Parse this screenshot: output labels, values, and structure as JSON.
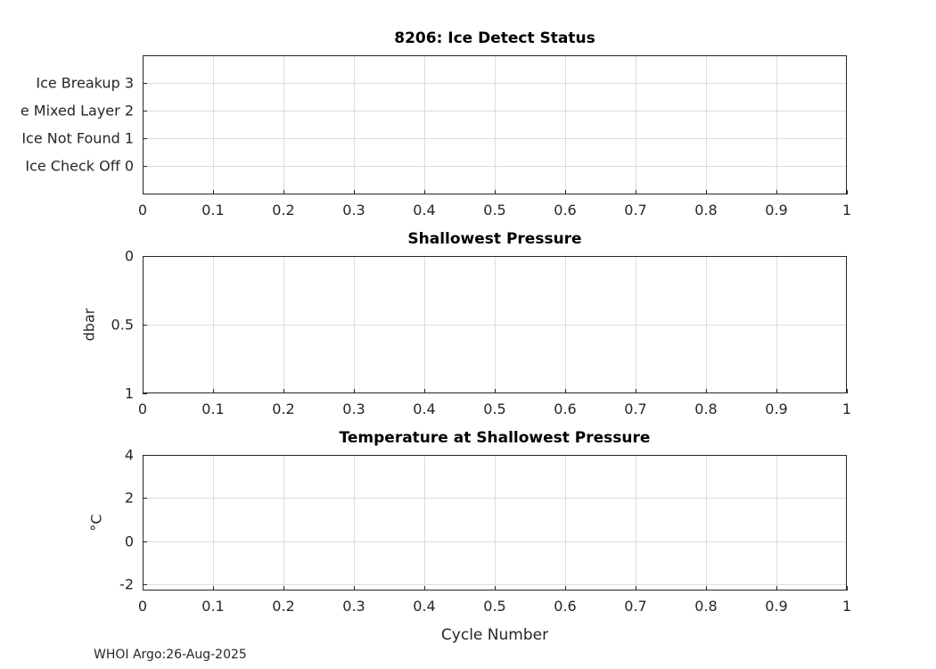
{
  "figure": {
    "footer_text": "WHOI Argo:26-Aug-2025"
  },
  "colors": {
    "axis": "#262626",
    "grid": "#dcdcdc",
    "background": "#ffffff",
    "text": "#262626"
  },
  "chart_data": [
    {
      "type": "line",
      "title": "8206: Ice Detect Status",
      "xlabel": "",
      "ylabel": "",
      "xlim": [
        0,
        1
      ],
      "ylim": [
        -1.05,
        4
      ],
      "y_reversed": false,
      "grid": true,
      "xticks": [
        0,
        0.1,
        0.2,
        0.3,
        0.4,
        0.5,
        0.6,
        0.7,
        0.8,
        0.9,
        1
      ],
      "xtick_labels": [
        "0",
        "0.1",
        "0.2",
        "0.3",
        "0.4",
        "0.5",
        "0.6",
        "0.7",
        "0.8",
        "0.9",
        "1"
      ],
      "yticks": [
        0,
        1,
        2,
        3
      ],
      "ytick_labels": [
        "Ice Check Off 0",
        "Ice Not Found 1",
        "e Mixed Layer 2",
        "Ice Breakup 3"
      ],
      "series": []
    },
    {
      "type": "line",
      "title": "Shallowest Pressure",
      "xlabel": "",
      "ylabel": "dbar",
      "xlim": [
        0,
        1
      ],
      "ylim": [
        0,
        1
      ],
      "y_reversed": true,
      "grid": true,
      "xticks": [
        0,
        0.1,
        0.2,
        0.3,
        0.4,
        0.5,
        0.6,
        0.7,
        0.8,
        0.9,
        1
      ],
      "xtick_labels": [
        "0",
        "0.1",
        "0.2",
        "0.3",
        "0.4",
        "0.5",
        "0.6",
        "0.7",
        "0.8",
        "0.9",
        "1"
      ],
      "yticks": [
        0,
        0.5,
        1
      ],
      "ytick_labels": [
        "0",
        "0.5",
        "1"
      ],
      "series": []
    },
    {
      "type": "line",
      "title": "Temperature at Shallowest Pressure",
      "xlabel": "Cycle Number",
      "ylabel": "°C",
      "xlim": [
        0,
        1
      ],
      "ylim": [
        -2.3,
        4
      ],
      "y_reversed": false,
      "grid": true,
      "xticks": [
        0,
        0.1,
        0.2,
        0.3,
        0.4,
        0.5,
        0.6,
        0.7,
        0.8,
        0.9,
        1
      ],
      "xtick_labels": [
        "0",
        "0.1",
        "0.2",
        "0.3",
        "0.4",
        "0.5",
        "0.6",
        "0.7",
        "0.8",
        "0.9",
        "1"
      ],
      "yticks": [
        -2,
        0,
        2,
        4
      ],
      "ytick_labels": [
        "-2",
        "0",
        "2",
        "4"
      ],
      "series": []
    }
  ]
}
